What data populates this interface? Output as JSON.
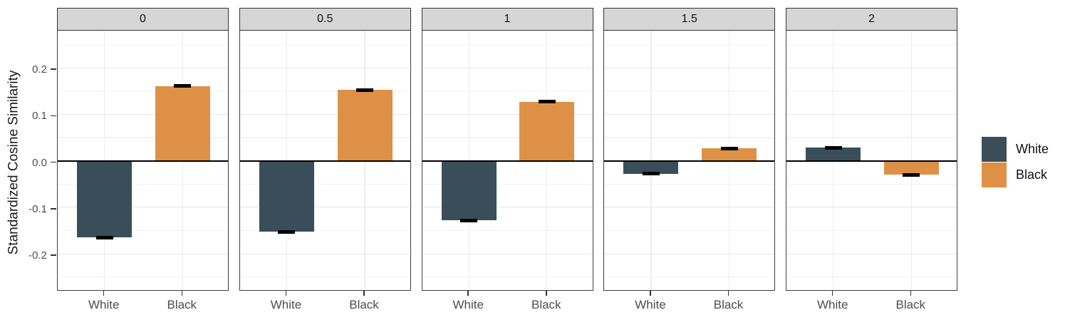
{
  "chart_data": {
    "type": "bar",
    "title": "",
    "xlabel": "",
    "ylabel": "Standardized Cosine Similarity",
    "categories": [
      "White",
      "Black"
    ],
    "series": [
      {
        "name": "White",
        "color": "#394e58"
      },
      {
        "name": "Black",
        "color": "#de9146"
      }
    ],
    "facets": [
      {
        "label": "0",
        "bars": [
          {
            "category": "White",
            "value": -0.165,
            "error": 0.004
          },
          {
            "category": "Black",
            "value": 0.161,
            "error": 0.003
          }
        ]
      },
      {
        "label": "0.5",
        "bars": [
          {
            "category": "White",
            "value": -0.153,
            "error": 0.004
          },
          {
            "category": "Black",
            "value": 0.152,
            "error": 0.003
          }
        ]
      },
      {
        "label": "1",
        "bars": [
          {
            "category": "White",
            "value": -0.128,
            "error": 0.004
          },
          {
            "category": "Black",
            "value": 0.127,
            "error": 0.003
          }
        ]
      },
      {
        "label": "1.5",
        "bars": [
          {
            "category": "White",
            "value": -0.028,
            "error": 0.003
          },
          {
            "category": "Black",
            "value": 0.027,
            "error": 0.003
          }
        ]
      },
      {
        "label": "2",
        "bars": [
          {
            "category": "White",
            "value": 0.028,
            "error": 0.003
          },
          {
            "category": "Black",
            "value": -0.03,
            "error": 0.003
          }
        ]
      }
    ],
    "y_axis": {
      "tick_values": [
        0.2,
        0.1,
        0.0,
        -0.1,
        -0.2
      ],
      "tick_labels": [
        "0.2",
        "0.1",
        "0.0",
        "-0.1",
        "-0.2"
      ],
      "minor_tick_values": [
        0.25,
        0.15,
        0.05,
        -0.05,
        -0.15,
        -0.25
      ],
      "ylim": [
        -0.278,
        0.28
      ]
    },
    "zero_line": 0,
    "grid": "on",
    "legend": {
      "position": "right",
      "entries": [
        {
          "label": "White",
          "color": "#394e58"
        },
        {
          "label": "Black",
          "color": "#de9146"
        }
      ]
    }
  }
}
